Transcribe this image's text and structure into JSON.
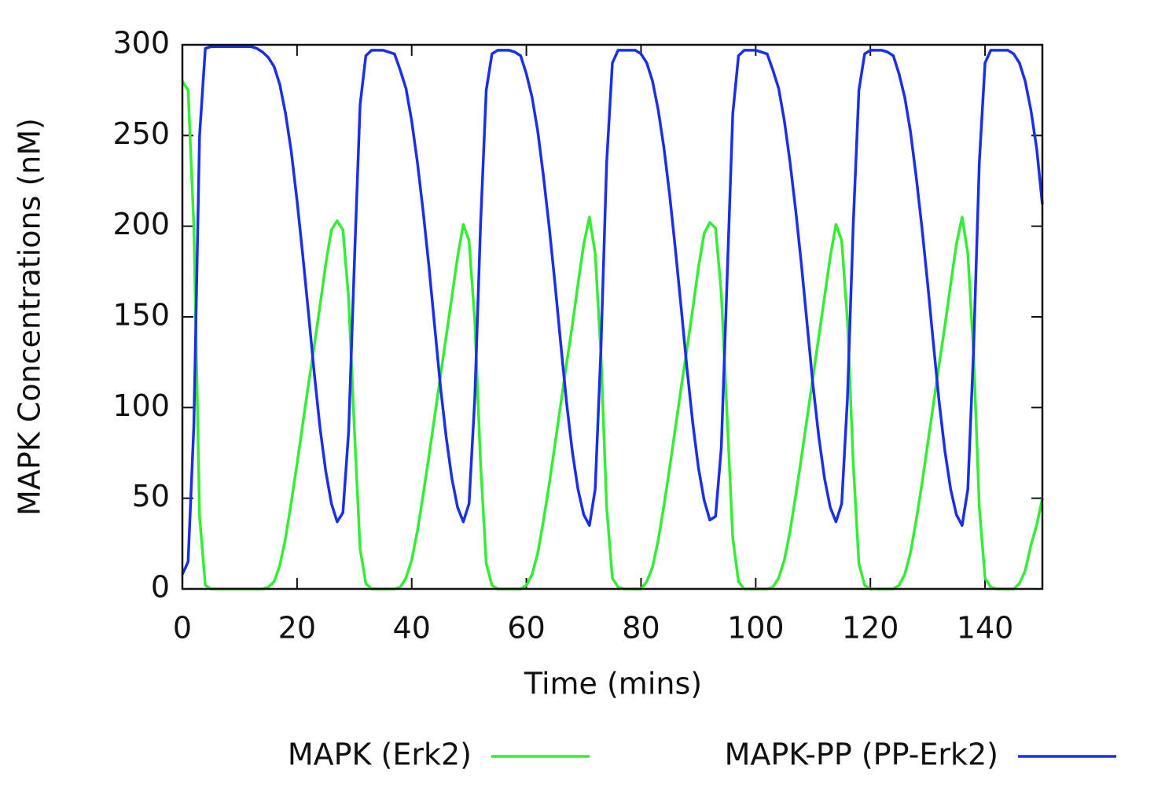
{
  "chart_data": {
    "type": "line",
    "xlabel": "Time (mins)",
    "ylabel": "MAPK Concentrations (nM)",
    "x": [
      0,
      1,
      2,
      3,
      4,
      5,
      6,
      7,
      8,
      9,
      10,
      11,
      12,
      13,
      14,
      15,
      16,
      17,
      18,
      19,
      20,
      21,
      22,
      23,
      24,
      25,
      26,
      27,
      28,
      29,
      30,
      31,
      32,
      33,
      34,
      35,
      36,
      37,
      38,
      39,
      40,
      41,
      42,
      43,
      44,
      45,
      46,
      47,
      48,
      49,
      50,
      51,
      52,
      53,
      54,
      55,
      56,
      57,
      58,
      59,
      60,
      61,
      62,
      63,
      64,
      65,
      66,
      67,
      68,
      69,
      70,
      71,
      72,
      73,
      74,
      75,
      76,
      77,
      78,
      79,
      80,
      81,
      82,
      83,
      84,
      85,
      86,
      87,
      88,
      89,
      90,
      91,
      92,
      93,
      94,
      95,
      96,
      97,
      98,
      99,
      100,
      101,
      102,
      103,
      104,
      105,
      106,
      107,
      108,
      109,
      110,
      111,
      112,
      113,
      114,
      115,
      116,
      117,
      118,
      119,
      120,
      121,
      122,
      123,
      124,
      125,
      126,
      127,
      128,
      129,
      130,
      131,
      132,
      133,
      134,
      135,
      136,
      137,
      138,
      139,
      140,
      141,
      142,
      143,
      144,
      145,
      146,
      147,
      148,
      149,
      150
    ],
    "series": [
      {
        "name": "MAPK (Erk2)",
        "color": "#33ee33",
        "values": [
          280,
          275,
          200,
          40,
          2,
          0,
          0,
          0,
          0,
          0,
          0,
          0,
          0,
          0,
          0,
          1,
          4,
          13,
          28,
          48,
          69,
          91,
          113,
          134,
          156,
          179,
          198,
          203,
          198,
          160,
          88,
          22,
          3,
          0,
          0,
          0,
          0,
          0,
          1,
          6,
          16,
          32,
          52,
          73,
          95,
          117,
          139,
          161,
          183,
          201,
          192,
          148,
          70,
          14,
          2,
          0,
          0,
          0,
          0,
          0,
          2,
          8,
          20,
          38,
          58,
          80,
          102,
          124,
          145,
          168,
          190,
          205,
          185,
          130,
          45,
          6,
          1,
          0,
          0,
          0,
          0,
          4,
          12,
          27,
          46,
          67,
          89,
          111,
          132,
          154,
          177,
          196,
          202,
          199,
          163,
          96,
          28,
          4,
          0,
          0,
          0,
          0,
          0,
          1,
          6,
          16,
          32,
          52,
          73,
          95,
          117,
          139,
          161,
          183,
          201,
          192,
          148,
          70,
          14,
          2,
          0,
          0,
          0,
          0,
          0,
          2,
          8,
          20,
          38,
          58,
          80,
          102,
          124,
          145,
          168,
          190,
          205,
          185,
          130,
          45,
          6,
          1,
          0,
          0,
          0,
          0,
          3,
          10,
          24,
          35,
          50
        ]
      },
      {
        "name": "MAPK-PP (PP-Erk2)",
        "color": "#1a2fe8",
        "values": [
          8,
          15,
          90,
          250,
          298,
          299,
          299,
          299,
          299,
          299,
          299,
          299,
          299,
          298,
          296,
          293,
          288,
          278,
          262,
          241,
          214,
          184,
          152,
          119,
          89,
          65,
          47,
          37,
          42,
          87,
          180,
          267,
          294,
          297,
          297,
          297,
          296,
          295,
          286,
          276,
          258,
          235,
          208,
          178,
          145,
          112,
          84,
          61,
          45,
          37,
          47,
          105,
          200,
          275,
          295,
          297,
          297,
          297,
          296,
          294,
          284,
          271,
          252,
          227,
          199,
          168,
          135,
          103,
          76,
          55,
          41,
          35,
          55,
          132,
          235,
          290,
          297,
          297,
          297,
          297,
          295,
          290,
          280,
          264,
          243,
          217,
          187,
          155,
          122,
          92,
          67,
          49,
          38,
          40,
          78,
          170,
          262,
          294,
          297,
          297,
          297,
          296,
          295,
          286,
          276,
          258,
          235,
          208,
          178,
          145,
          112,
          84,
          61,
          45,
          37,
          47,
          105,
          200,
          275,
          295,
          297,
          297,
          297,
          296,
          294,
          284,
          271,
          252,
          227,
          199,
          168,
          135,
          103,
          76,
          55,
          41,
          35,
          55,
          132,
          235,
          290,
          297,
          297,
          297,
          297,
          295,
          290,
          280,
          264,
          243,
          212
        ]
      }
    ],
    "xlim": [
      0,
      150
    ],
    "xticks": [
      0,
      20,
      40,
      60,
      80,
      100,
      120,
      140
    ],
    "ylim": [
      0,
      300
    ],
    "yticks": [
      0,
      50,
      100,
      150,
      200,
      250,
      300
    ]
  }
}
